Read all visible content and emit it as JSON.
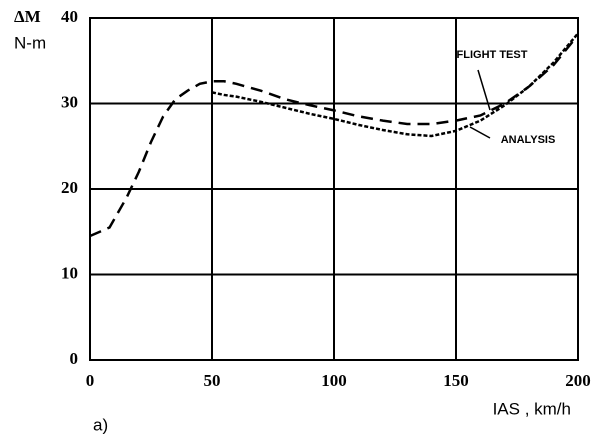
{
  "chart_data": {
    "type": "line",
    "y_label_symbol": "ΔM",
    "y_label_unit": "N-m",
    "x_label": "IAS , km/h",
    "panel_label": "a)",
    "x": [
      0,
      8,
      15,
      20,
      25,
      30,
      35,
      40,
      45,
      50,
      55,
      60,
      70,
      80,
      90,
      100,
      110,
      120,
      130,
      140,
      150,
      160,
      170,
      180,
      190,
      200
    ],
    "series": [
      {
        "name": "FLIGHT TEST",
        "color": "#000000",
        "dash": "dashed",
        "values": [
          14.5,
          15.5,
          19,
          22,
          25.5,
          28.5,
          30.5,
          31.5,
          32.3,
          32.6,
          32.6,
          32.3,
          31.5,
          30.5,
          29.8,
          29.2,
          28.5,
          28,
          27.6,
          27.6,
          28,
          28.6,
          30,
          32,
          34.5,
          38
        ]
      },
      {
        "name": "ANALYSIS",
        "color": "#000000",
        "dash": "dotted",
        "values": [
          null,
          null,
          null,
          null,
          null,
          null,
          null,
          null,
          null,
          31.3,
          31,
          30.8,
          30.2,
          29.5,
          28.8,
          28.2,
          27.5,
          26.9,
          26.4,
          26.2,
          26.8,
          28,
          29.8,
          32,
          34.8,
          38.2
        ]
      }
    ],
    "xlim": [
      0,
      200
    ],
    "xticks": [
      0,
      50,
      100,
      150,
      200
    ],
    "ylim": [
      0,
      40
    ],
    "yticks": [
      0,
      10,
      20,
      30,
      40
    ],
    "grid": true
  }
}
